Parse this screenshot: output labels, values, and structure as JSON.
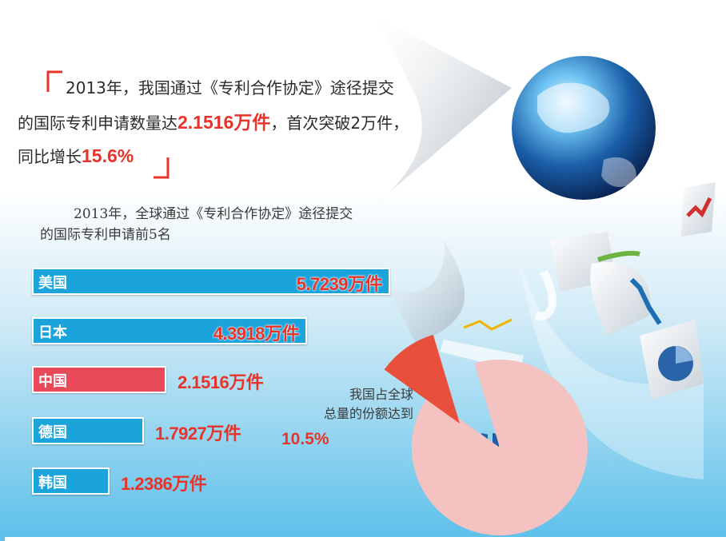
{
  "headline": {
    "line1_prefix": "2013年，我国通过《专利合作协定》途径提交",
    "line2_prefix": "的国际专利申请数量达",
    "line2_highlight": "2.1516万件",
    "line2_suffix": "，首次突破2万件，",
    "line3_prefix": "同比增长",
    "line3_highlight": "15.6%"
  },
  "subtitle_line1": "2013年，全球通过《专利合作协定》途径提交",
  "subtitle_line2": "的国际专利申请前5名",
  "pie_note_line1": "我国占全球",
  "pie_note_line2": "总量的份额达到",
  "pie_value": "10.5%",
  "colors": {
    "bar_blue": "#1ba4db",
    "bar_red": "#e84a5a",
    "text_red": "#e8332a",
    "pie_main": "#f4c2c0",
    "pie_slice": "#e8503c"
  },
  "chart_data": [
    {
      "type": "bar",
      "categories": [
        "美国",
        "日本",
        "中国",
        "德国",
        "韩国"
      ],
      "values": [
        5.7239,
        4.3918,
        2.1516,
        1.7927,
        1.2386
      ],
      "value_labels": [
        "5.7239万件",
        "4.3918万件",
        "2.1516万件",
        "1.7927万件",
        "1.2386万件"
      ],
      "highlight_category": "中国",
      "unit": "万件"
    },
    {
      "type": "pie",
      "labels": [
        "中国"
      ],
      "values": [
        10.5
      ],
      "unit": "%"
    }
  ]
}
